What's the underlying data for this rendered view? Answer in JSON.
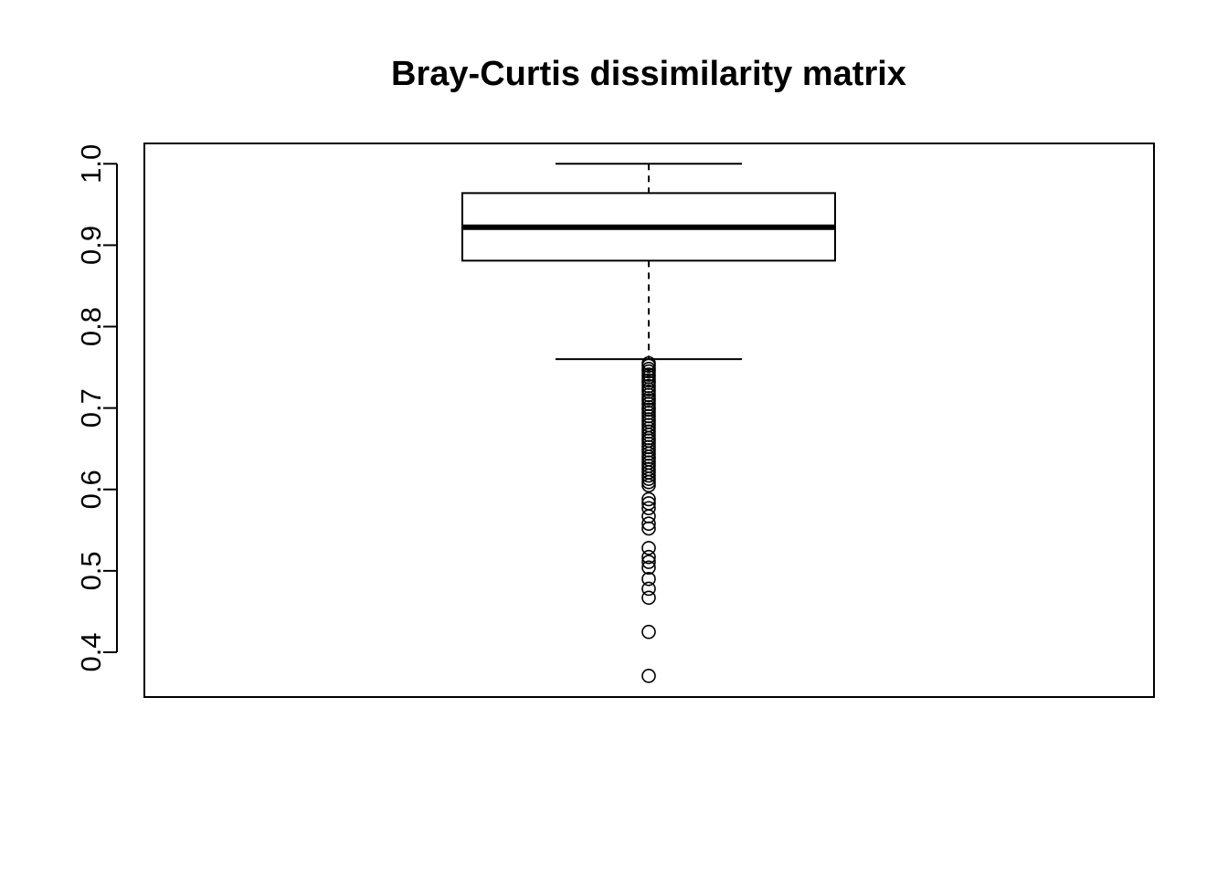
{
  "chart_data": {
    "type": "boxplot",
    "title": "Bray-Curtis dissimilarity matrix",
    "xlabel": "",
    "ylabel": "",
    "ylim": [
      0.345,
      1.025
    ],
    "yticks": [
      0.4,
      0.5,
      0.6,
      0.7,
      0.8,
      0.9,
      1.0
    ],
    "ytick_labels": [
      "0.4",
      "0.5",
      "0.6",
      "0.7",
      "0.8",
      "0.9",
      "1.0"
    ],
    "grid": false,
    "legend": "none",
    "box": {
      "whisker_low": 0.76,
      "q1": 0.881,
      "median": 0.922,
      "q3": 0.964,
      "whisker_high": 1.0
    },
    "outliers": [
      0.755,
      0.752,
      0.748,
      0.745,
      0.741,
      0.738,
      0.734,
      0.731,
      0.727,
      0.723,
      0.72,
      0.716,
      0.712,
      0.709,
      0.705,
      0.701,
      0.698,
      0.694,
      0.69,
      0.686,
      0.683,
      0.679,
      0.675,
      0.671,
      0.667,
      0.663,
      0.66,
      0.656,
      0.652,
      0.648,
      0.644,
      0.64,
      0.637,
      0.633,
      0.629,
      0.625,
      0.621,
      0.617,
      0.613,
      0.609,
      0.605,
      0.588,
      0.583,
      0.577,
      0.567,
      0.558,
      0.552,
      0.528,
      0.517,
      0.511,
      0.504,
      0.49,
      0.478,
      0.467,
      0.425,
      0.371
    ]
  }
}
